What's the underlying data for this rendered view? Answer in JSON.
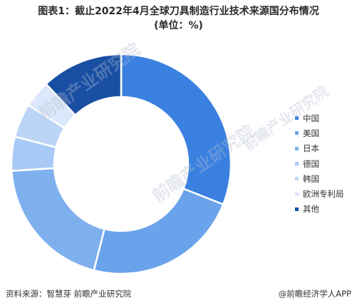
{
  "title_line1": "图表1：截止2022年4月全球刀具制造行业技术来源国分布情况",
  "title_line2": "(单位：%)",
  "chart_data": {
    "type": "pie",
    "donut": true,
    "categories": [
      "中国",
      "美国",
      "日本",
      "德国",
      "韩国",
      "欧洲专利局",
      "其他"
    ],
    "values": [
      31,
      23,
      20,
      5,
      5,
      4,
      12
    ],
    "colors": [
      "#3a80e0",
      "#6aa3eb",
      "#7fb0ee",
      "#a8c9f5",
      "#bcd5f7",
      "#dbe7fa",
      "#184fa3"
    ],
    "legend_position": "right"
  },
  "footer": {
    "source": "资料来源：智慧芽 前瞻产业研究院",
    "brand": "@前瞻经济学人APP"
  },
  "watermarks": [
    "前瞻产业研究院",
    "前瞻产业研究院",
    "前瞻产业研究院"
  ]
}
